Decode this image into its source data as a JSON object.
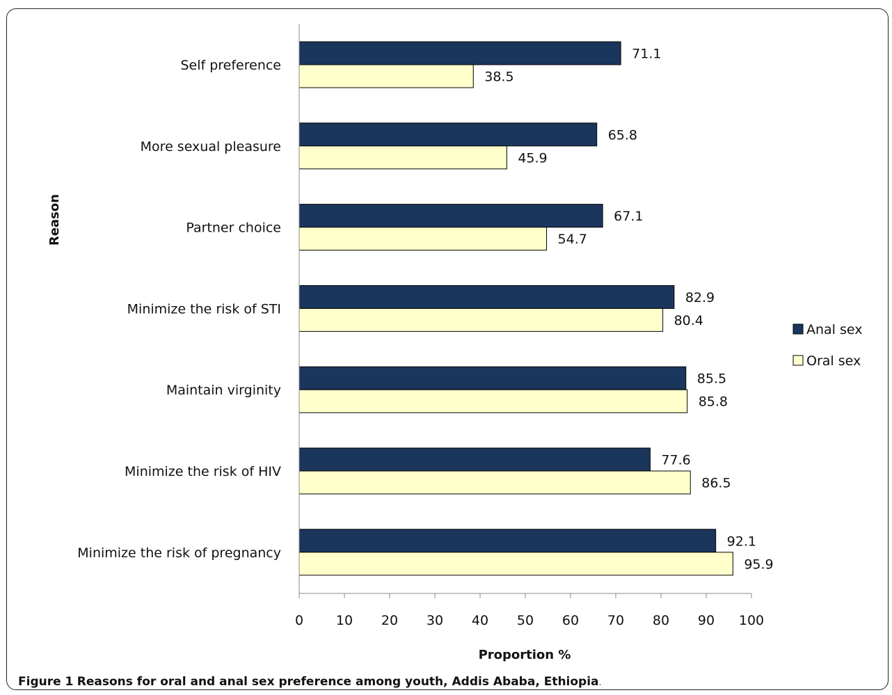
{
  "chart_data": {
    "type": "bar",
    "orientation": "horizontal",
    "categories": [
      "Self preference",
      "More sexual pleasure",
      "Partner choice",
      "Minimize the risk of STI",
      "Maintain virginity",
      "Minimize the risk of HIV",
      "Minimize the risk of pregnancy"
    ],
    "series": [
      {
        "name": "Anal sex",
        "color": "#1b365d",
        "values": [
          71.1,
          65.8,
          67.1,
          82.9,
          85.5,
          77.6,
          92.1
        ]
      },
      {
        "name": "Oral sex",
        "color": "#ffffcc",
        "values": [
          38.5,
          45.9,
          54.7,
          80.4,
          85.8,
          86.5,
          95.9
        ]
      }
    ],
    "xlabel": "Proportion %",
    "ylabel": "Reason",
    "xlim": [
      0,
      100
    ],
    "xticks": [
      0,
      10,
      20,
      30,
      40,
      50,
      60,
      70,
      80,
      90,
      100
    ],
    "legend_position": "right",
    "grid": false
  },
  "caption": {
    "label": "Figure 1",
    "text": "Reasons for oral and anal sex preference among youth, Addis Ababa, Ethiopia",
    "period": "."
  }
}
